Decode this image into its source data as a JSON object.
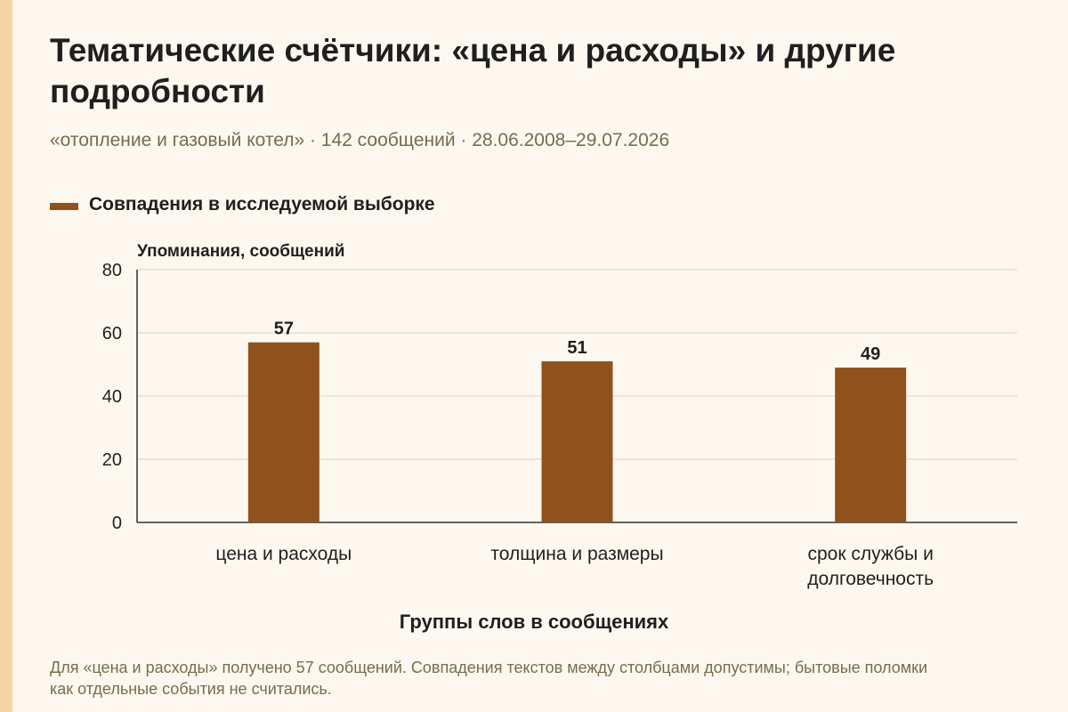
{
  "header": {
    "title": "Тематические счётчики: «цена и расходы» и другие подробности",
    "subtitle": "«отопление и газовый котел» · 142 сообщений · 28.06.2008–29.07.2026"
  },
  "footer": {
    "note": "Для «цена и расходы» получено 57 сообщений. Совпадения текстов между столбцами допустимы; бытовые поломки как отдельные события не считались."
  },
  "colors": {
    "bar": "#8f521d",
    "grid": "#d9d4c8",
    "axis": "#333333",
    "strip": "#f6d3a6"
  },
  "chart_data": {
    "type": "bar",
    "title": "Тематические счётчики: «цена и расходы» и другие подробности",
    "subtitle": "«отопление и газовый котел» · 142 сообщений · 28.06.2008–29.07.2026",
    "xlabel": "Группы слов в сообщениях",
    "ylabel": "Упоминания, сообщений",
    "categories": [
      "цена и расходы",
      "толщина и размеры",
      "срок службы и долговечность"
    ],
    "category_lines": [
      [
        "цена и расходы"
      ],
      [
        "толщина и размеры"
      ],
      [
        "срок службы и",
        "долговечность"
      ]
    ],
    "series": [
      {
        "name": "Совпадения в исследуемой выборке",
        "values": [
          57,
          51,
          49
        ]
      }
    ],
    "ylim": [
      0,
      80
    ],
    "yticks": [
      0,
      20,
      40,
      60,
      80
    ],
    "grid": true,
    "legend": "top-left"
  }
}
